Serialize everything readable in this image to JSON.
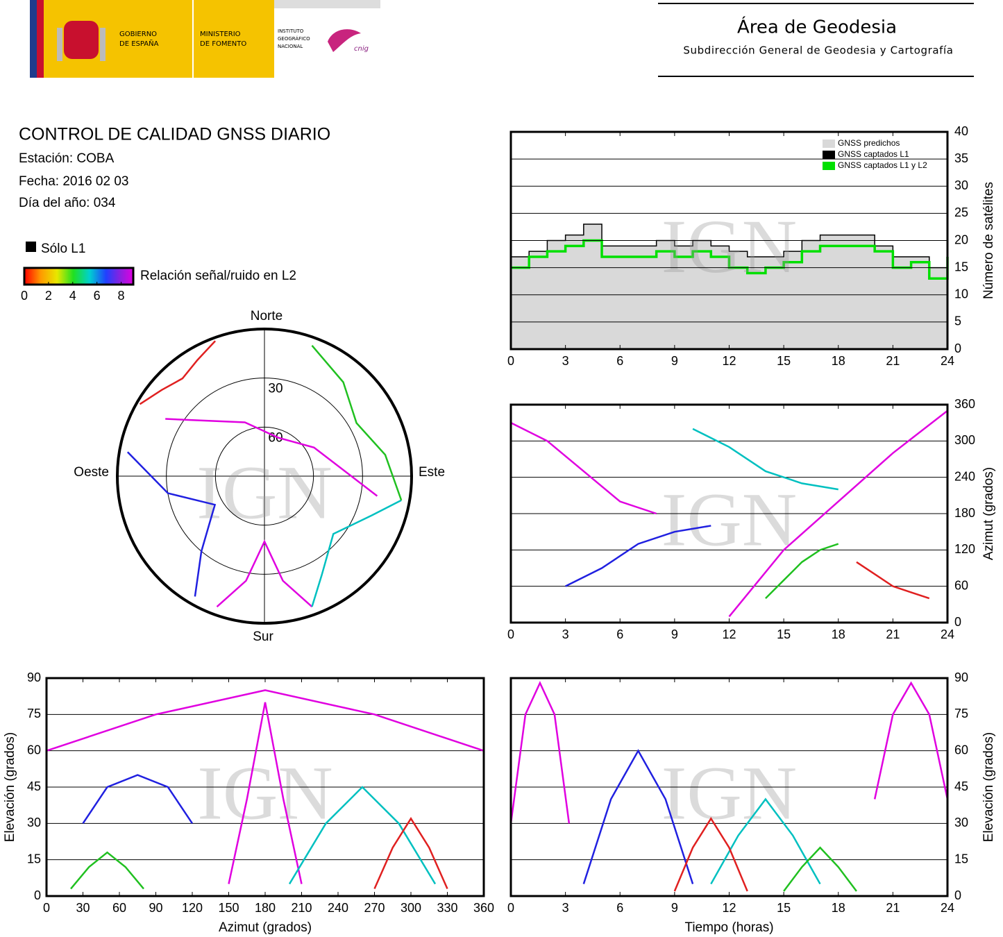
{
  "header": {
    "gobierno": [
      "GOBIERNO",
      "DE ESPAÑA"
    ],
    "ministerio": [
      "MINISTERIO",
      "DE FOMENTO"
    ],
    "instituto": [
      "INSTITUTO",
      "GEOGRÁFICO",
      "NACIONAL"
    ],
    "cnig": "cnig",
    "title": "Área de Geodesia",
    "subtitle": "Subdirección General de Geodesia y Cartografía"
  },
  "report": {
    "title": "CONTROL DE CALIDAD GNSS DIARIO",
    "lines": [
      "Estación: COBA",
      "Fecha: 2016 02 03",
      "Día del año: 034"
    ]
  },
  "legend": {
    "solo_l1": "Sólo L1",
    "colorbar_label": "Relación señal/ruido en L2",
    "colorbar_range": [
      0,
      9
    ],
    "colorbar_ticks": [
      0,
      2,
      4,
      6,
      8
    ]
  },
  "watermark": "IGN",
  "chart_data": [
    {
      "type": "polar",
      "labels": {
        "north": "Norte",
        "south": "Sur",
        "west": "Oeste",
        "east": "Este"
      },
      "rlim": [
        90,
        0
      ],
      "rticks": [
        30,
        60
      ],
      "tracks": [
        {
          "color": "#e000e0",
          "azimuth": [
            160,
            170,
            180,
            190,
            200
          ],
          "elevation": [
            5,
            25,
            50,
            25,
            5
          ]
        },
        {
          "color": "#2020e0",
          "azimuth": [
            210,
            220,
            240,
            260,
            280
          ],
          "elevation": [
            5,
            30,
            55,
            30,
            5
          ]
        },
        {
          "color": "#00c0c0",
          "azimuth": [
            100,
            110,
            130,
            150,
            160
          ],
          "elevation": [
            5,
            20,
            35,
            20,
            5
          ]
        },
        {
          "color": "#20c020",
          "azimuth": [
            20,
            40,
            60,
            80,
            100
          ],
          "elevation": [
            5,
            15,
            25,
            15,
            5
          ]
        },
        {
          "color": "#e02020",
          "azimuth": [
            300,
            310,
            320,
            330,
            340
          ],
          "elevation": [
            2,
            8,
            12,
            8,
            2
          ]
        },
        {
          "color": "#e000e0",
          "azimuth": [
            300,
            340,
            20,
            60,
            100
          ],
          "elevation": [
            20,
            55,
            65,
            55,
            20
          ]
        }
      ]
    },
    {
      "type": "line",
      "ylabel": "Número de satélites",
      "xlim": [
        0,
        24
      ],
      "xticks": [
        0,
        3,
        6,
        9,
        12,
        15,
        18,
        21,
        24
      ],
      "ylim": [
        0,
        40
      ],
      "yticks": [
        0,
        5,
        10,
        15,
        20,
        25,
        30,
        35,
        40
      ],
      "grid": true,
      "yaxis_side": "right",
      "legend": "upper right",
      "x": [
        0,
        1,
        2,
        3,
        4,
        5,
        6,
        7,
        8,
        9,
        10,
        11,
        12,
        13,
        14,
        15,
        16,
        17,
        18,
        19,
        20,
        21,
        22,
        23,
        24
      ],
      "series": [
        {
          "name": "GNSS predichos",
          "color": "#d9d9d9",
          "style": "area",
          "values": [
            17,
            18,
            20,
            21,
            23,
            19,
            19,
            19,
            20,
            19,
            20,
            19,
            18,
            17,
            17,
            18,
            20,
            21,
            21,
            21,
            19,
            17,
            17,
            15,
            19
          ]
        },
        {
          "name": "GNSS captados L1",
          "color": "#000000",
          "style": "step",
          "values": [
            17,
            18,
            20,
            21,
            23,
            19,
            19,
            19,
            20,
            19,
            20,
            19,
            18,
            17,
            17,
            18,
            20,
            21,
            21,
            21,
            19,
            17,
            17,
            15,
            19
          ]
        },
        {
          "name": "GNSS captados L1 y L2",
          "color": "#00e000",
          "style": "step",
          "values": [
            15,
            17,
            18,
            19,
            20,
            17,
            17,
            17,
            18,
            17,
            18,
            17,
            15,
            14,
            15,
            16,
            18,
            19,
            19,
            19,
            18,
            15,
            16,
            13,
            17
          ]
        }
      ]
    },
    {
      "type": "line",
      "ylabel": "Azimut (grados)",
      "xlim": [
        0,
        24
      ],
      "xticks": [
        0,
        3,
        6,
        9,
        12,
        15,
        18,
        21,
        24
      ],
      "ylim": [
        0,
        360
      ],
      "yticks": [
        0,
        60,
        120,
        180,
        240,
        300,
        360
      ],
      "grid": true,
      "yaxis_side": "right",
      "tracks": [
        {
          "color": "#e000e0",
          "x": [
            0,
            2,
            4,
            6,
            8
          ],
          "values": [
            330,
            300,
            250,
            200,
            180
          ]
        },
        {
          "color": "#2020e0",
          "x": [
            3,
            5,
            7,
            9,
            11
          ],
          "values": [
            60,
            90,
            130,
            150,
            160
          ]
        },
        {
          "color": "#00c0c0",
          "x": [
            10,
            12,
            14,
            16,
            18
          ],
          "values": [
            320,
            290,
            250,
            230,
            220
          ]
        },
        {
          "color": "#20c020",
          "x": [
            14,
            15,
            16,
            17,
            18
          ],
          "values": [
            40,
            70,
            100,
            120,
            130
          ]
        },
        {
          "color": "#e02020",
          "x": [
            19,
            20,
            21,
            22,
            23
          ],
          "values": [
            100,
            80,
            60,
            50,
            40
          ]
        },
        {
          "color": "#e000e0",
          "x": [
            12,
            15,
            18,
            21,
            24
          ],
          "values": [
            10,
            120,
            200,
            280,
            350
          ]
        }
      ]
    },
    {
      "type": "line",
      "xlabel": "Azimut (grados)",
      "ylabel": "Elevación (grados)",
      "xlim": [
        0,
        360
      ],
      "xticks": [
        0,
        30,
        60,
        90,
        120,
        150,
        180,
        210,
        240,
        270,
        300,
        330,
        360
      ],
      "ylim": [
        0,
        90
      ],
      "yticks": [
        0,
        15,
        30,
        45,
        60,
        75,
        90
      ],
      "grid": true,
      "yaxis_side": "left",
      "tracks": [
        {
          "color": "#e000e0",
          "x": [
            150,
            165,
            180,
            195,
            210
          ],
          "values": [
            5,
            40,
            80,
            40,
            5
          ]
        },
        {
          "color": "#2020e0",
          "x": [
            30,
            50,
            75,
            100,
            120
          ],
          "values": [
            30,
            45,
            50,
            45,
            30
          ]
        },
        {
          "color": "#00c0c0",
          "x": [
            200,
            230,
            260,
            290,
            320
          ],
          "values": [
            5,
            30,
            45,
            30,
            5
          ]
        },
        {
          "color": "#20c020",
          "x": [
            20,
            35,
            50,
            65,
            80
          ],
          "values": [
            3,
            12,
            18,
            12,
            3
          ]
        },
        {
          "color": "#e02020",
          "x": [
            270,
            285,
            300,
            315,
            330
          ],
          "values": [
            3,
            20,
            32,
            20,
            3
          ]
        },
        {
          "color": "#e000e0",
          "x": [
            0,
            90,
            180,
            270,
            360
          ],
          "values": [
            60,
            75,
            85,
            75,
            60
          ]
        }
      ]
    },
    {
      "type": "line",
      "xlabel": "Tiempo (horas)",
      "ylabel": "Elevación (grados)",
      "xlim": [
        0,
        24
      ],
      "xticks": [
        0,
        3,
        6,
        9,
        12,
        15,
        18,
        21,
        24
      ],
      "ylim": [
        0,
        90
      ],
      "yticks": [
        0,
        15,
        30,
        45,
        60,
        75,
        90
      ],
      "grid": true,
      "yaxis_side": "right",
      "tracks": [
        {
          "color": "#e000e0",
          "x": [
            0,
            0.8,
            1.6,
            2.4,
            3.2
          ],
          "values": [
            30,
            75,
            88,
            75,
            30
          ]
        },
        {
          "color": "#2020e0",
          "x": [
            4,
            5.5,
            7,
            8.5,
            10
          ],
          "values": [
            5,
            40,
            60,
            40,
            5
          ]
        },
        {
          "color": "#00c0c0",
          "x": [
            11,
            12.5,
            14,
            15.5,
            17
          ],
          "values": [
            5,
            25,
            40,
            25,
            5
          ]
        },
        {
          "color": "#20c020",
          "x": [
            15,
            16,
            17,
            18,
            19
          ],
          "values": [
            2,
            12,
            20,
            12,
            2
          ]
        },
        {
          "color": "#e02020",
          "x": [
            9,
            10,
            11,
            12,
            13
          ],
          "values": [
            2,
            20,
            32,
            20,
            2
          ]
        },
        {
          "color": "#e000e0",
          "x": [
            20,
            21,
            22,
            23,
            24
          ],
          "values": [
            40,
            75,
            88,
            75,
            40
          ]
        }
      ]
    }
  ]
}
